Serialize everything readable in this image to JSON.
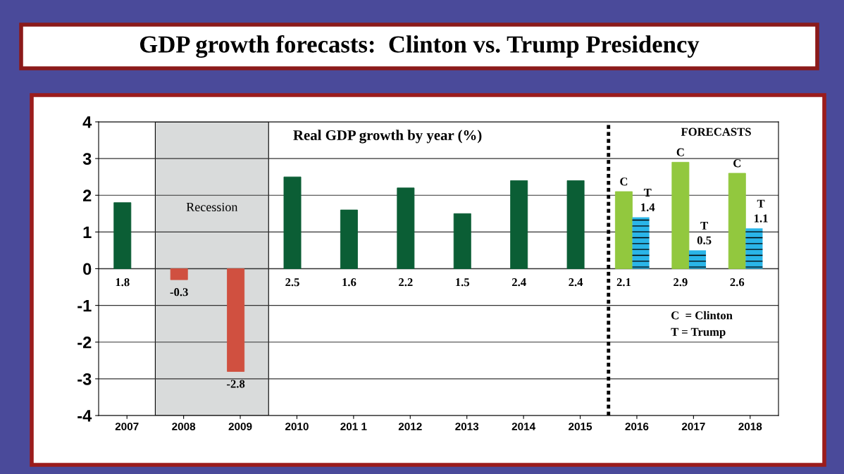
{
  "chart_data": {
    "type": "bar",
    "title": "GDP growth forecasts:  Clinton vs. Trump Presidency",
    "subtitle": "Real GDP growth by year (%)",
    "categories": [
      "2007",
      "2008",
      "2009",
      "2010",
      "201 1",
      "2012",
      "2013",
      "2014",
      "2015",
      "2016",
      "2017",
      "2018"
    ],
    "series": [
      {
        "colors": [
          "#0b5e35",
          "#d05040",
          "#d05040",
          "#0b5e35",
          "#0b5e35",
          "#0b5e35",
          "#0b5e35",
          "#0b5e35",
          "#0b5e35",
          null,
          null,
          null
        ],
        "values": [
          1.8,
          -0.3,
          -2.8,
          2.5,
          1.6,
          2.2,
          1.5,
          2.4,
          2.4,
          null,
          null,
          null
        ]
      },
      {
        "color": "#92c83e",
        "values": [
          null,
          null,
          null,
          null,
          null,
          null,
          null,
          null,
          null,
          2.1,
          2.9,
          2.6
        ]
      },
      {
        "color": "#2ab5e8",
        "values": [
          null,
          null,
          null,
          null,
          null,
          null,
          null,
          null,
          null,
          1.4,
          0.5,
          1.1
        ]
      }
    ],
    "data_labels": true,
    "ylim": [
      -4,
      4
    ],
    "yticks": [
      -4,
      -3,
      -2,
      -1,
      0,
      1,
      2,
      3,
      4
    ],
    "grid": "y",
    "bands": [
      {
        "axis": "x",
        "from": "2008",
        "to": "2009",
        "label": "Recession",
        "color": "#d9dbdb"
      }
    ],
    "annotations": [
      "C",
      "C",
      "C",
      "T",
      "T",
      "T",
      "FORECASTS",
      "C  = Clinton",
      "T = Trump"
    ]
  }
}
